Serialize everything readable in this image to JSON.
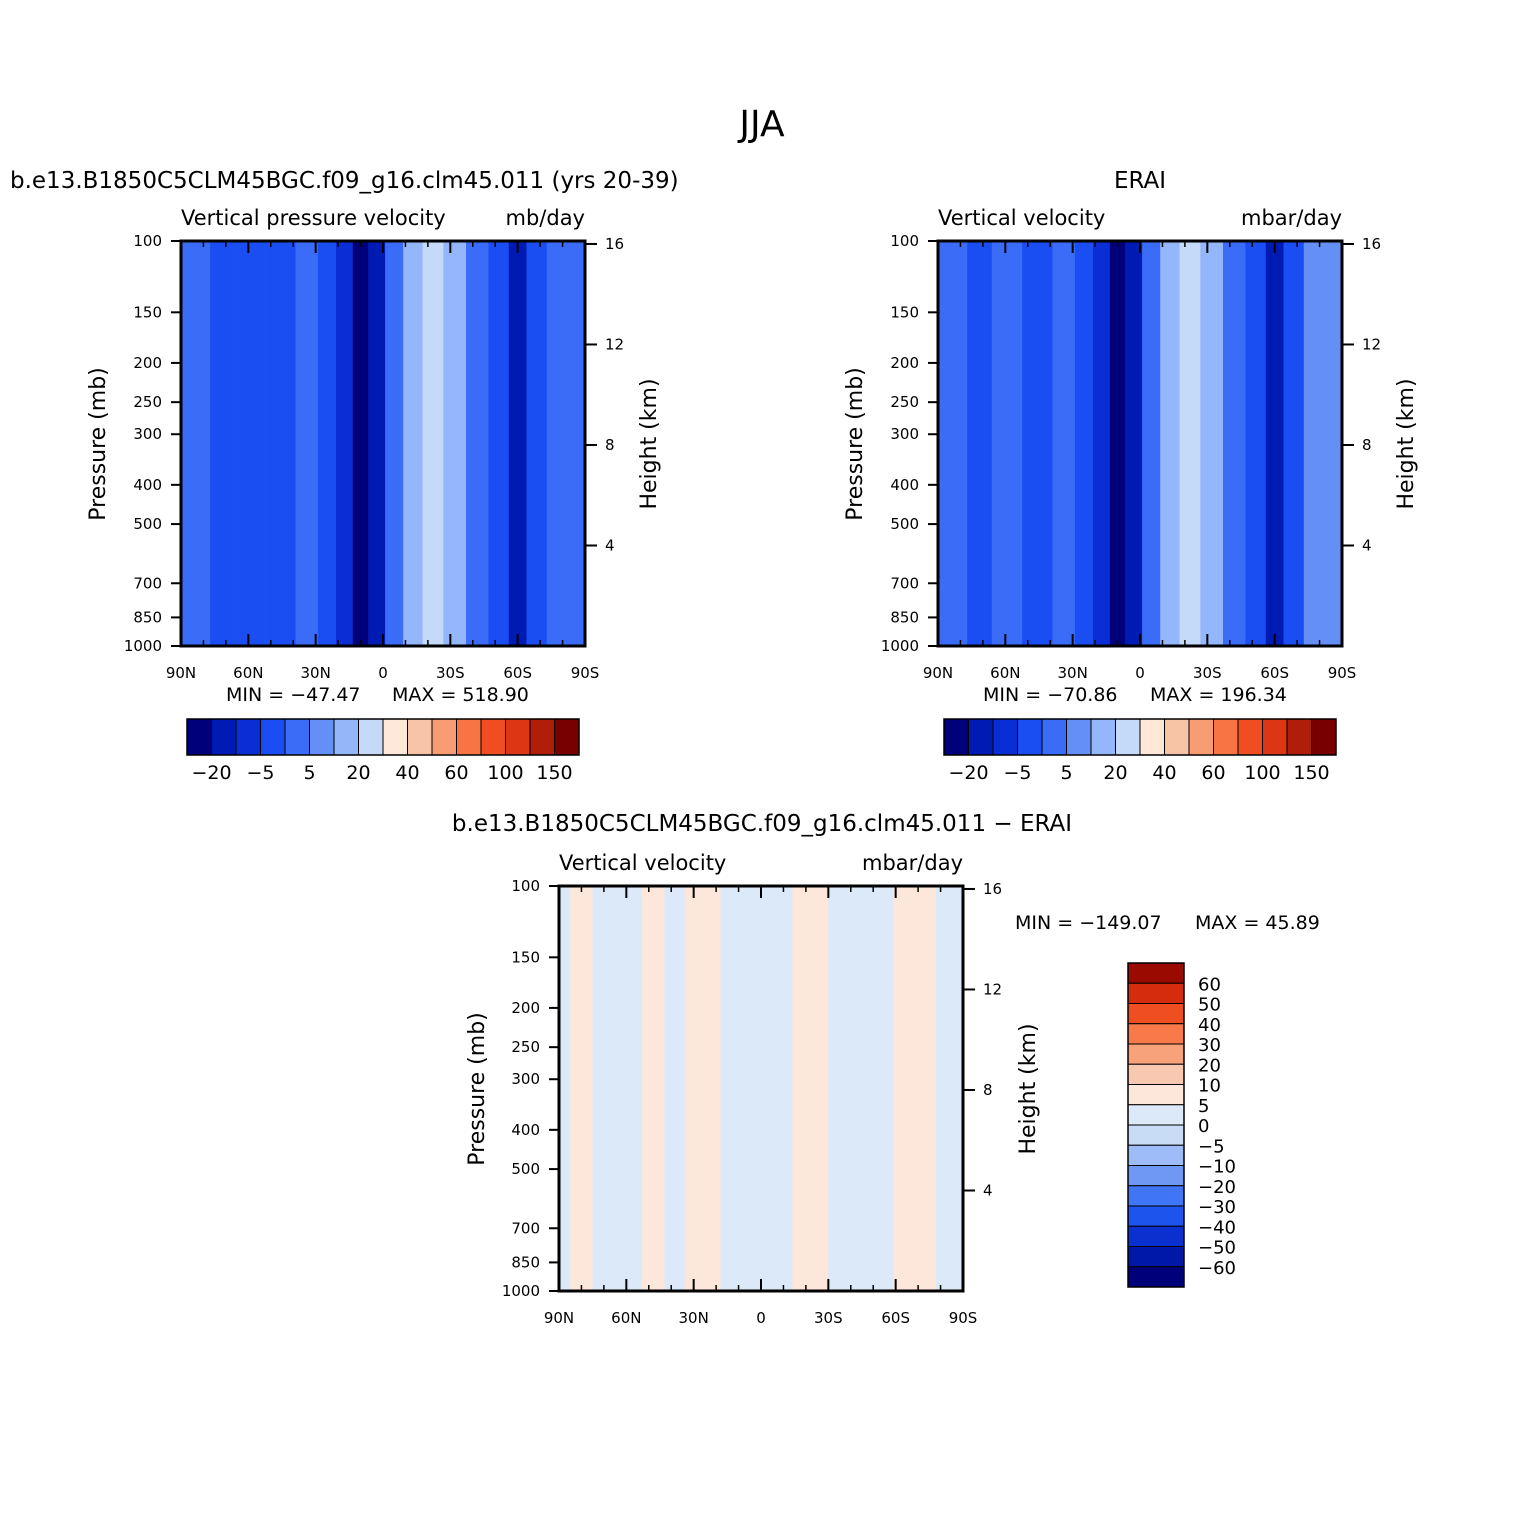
{
  "figure": {
    "title": "JJA"
  },
  "colors": {
    "left_palette": [
      "#00007a",
      "#001ab4",
      "#0a2ed6",
      "#1a4ef2",
      "#3a6cf8",
      "#6490f6",
      "#94b6fa",
      "#c4daf8",
      "#ffe8d8",
      "#f8c4a8",
      "#f89c74",
      "#f87444",
      "#f04e22",
      "#dc3614",
      "#b01e0a",
      "#780000"
    ],
    "diff_palette": [
      "#00007a",
      "#0018a8",
      "#0a30d0",
      "#1e54ee",
      "#4076f6",
      "#6e98f4",
      "#9ebcf8",
      "#c8dcf6",
      "#dbe9f8",
      "#fde7da",
      "#f8c8b0",
      "#f8a27c",
      "#f87a4a",
      "#ee4e20",
      "#d42c0c",
      "#9a0a00"
    ]
  },
  "chart_data": [
    {
      "id": "model",
      "type": "heatmap",
      "title": "b.e13.B1850C5CLM45BGC.f09_g16.clm45.011 (yrs 20-39)",
      "subtitle_left": "Vertical pressure velocity",
      "subtitle_right": "mb/day",
      "ylabel": "Pressure (mb)",
      "ylabel_right": "Height (km)",
      "x_ticks": [
        "90N",
        "60N",
        "30N",
        "0",
        "30S",
        "60S",
        "90S"
      ],
      "xlim": [
        90,
        -90
      ],
      "y_ticks": [
        100,
        150,
        200,
        250,
        300,
        400,
        500,
        700,
        850,
        1000
      ],
      "ylim": [
        100,
        1000
      ],
      "y_scale": "log",
      "height_ticks": [
        16,
        12,
        8,
        4
      ],
      "min_label": "MIN = −47.47",
      "max_label": "MAX = 518.90",
      "min": -47.47,
      "max": 518.9,
      "colorbar_labels": [
        "−20",
        "−5",
        "5",
        "20",
        "40",
        "60",
        "100",
        "150"
      ],
      "field": {
        "columns": [
          {
            "lat": 90,
            "level": 4
          },
          {
            "lat": 82,
            "level": 4
          },
          {
            "lat": 72,
            "level": 3
          },
          {
            "lat": 60,
            "level": 3
          },
          {
            "lat": 45,
            "level": 3
          },
          {
            "lat": 33,
            "level": 4
          },
          {
            "lat": 25,
            "level": 3
          },
          {
            "lat": 17,
            "level": 2
          },
          {
            "lat": 10,
            "level": 0
          },
          {
            "lat": 3,
            "level": 1
          },
          {
            "lat": -5,
            "level": 4
          },
          {
            "lat": -13,
            "level": 6
          },
          {
            "lat": -22,
            "level": 7
          },
          {
            "lat": -32,
            "level": 6
          },
          {
            "lat": -42,
            "level": 4
          },
          {
            "lat": -52,
            "level": 3
          },
          {
            "lat": -60,
            "level": 1
          },
          {
            "lat": -68,
            "level": 3
          },
          {
            "lat": -78,
            "level": 4
          },
          {
            "lat": -90,
            "level": 4
          }
        ]
      }
    },
    {
      "id": "obs",
      "type": "heatmap",
      "title": "ERAI",
      "subtitle_left": "Vertical velocity",
      "subtitle_right": "mbar/day",
      "ylabel": "Pressure (mb)",
      "ylabel_right": "Height (km)",
      "x_ticks": [
        "90N",
        "60N",
        "30N",
        "0",
        "30S",
        "60S",
        "90S"
      ],
      "xlim": [
        90,
        -90
      ],
      "y_ticks": [
        100,
        150,
        200,
        250,
        300,
        400,
        500,
        700,
        850,
        1000
      ],
      "ylim": [
        100,
        1000
      ],
      "y_scale": "log",
      "height_ticks": [
        16,
        12,
        8,
        4
      ],
      "min_label": "MIN = −70.86",
      "max_label": "MAX = 196.34",
      "min": -70.86,
      "max": 196.34,
      "colorbar_labels": [
        "−20",
        "−5",
        "5",
        "20",
        "40",
        "60",
        "100",
        "150"
      ],
      "field": {
        "columns": [
          {
            "lat": 90,
            "level": 4
          },
          {
            "lat": 82,
            "level": 4
          },
          {
            "lat": 72,
            "level": 3
          },
          {
            "lat": 60,
            "level": 4
          },
          {
            "lat": 45,
            "level": 3
          },
          {
            "lat": 33,
            "level": 4
          },
          {
            "lat": 25,
            "level": 3
          },
          {
            "lat": 17,
            "level": 2
          },
          {
            "lat": 10,
            "level": 0
          },
          {
            "lat": 3,
            "level": 1
          },
          {
            "lat": -5,
            "level": 4
          },
          {
            "lat": -13,
            "level": 6
          },
          {
            "lat": -22,
            "level": 7
          },
          {
            "lat": -32,
            "level": 6
          },
          {
            "lat": -42,
            "level": 4
          },
          {
            "lat": -52,
            "level": 3
          },
          {
            "lat": -60,
            "level": 1
          },
          {
            "lat": -68,
            "level": 3
          },
          {
            "lat": -78,
            "level": 5
          },
          {
            "lat": -90,
            "level": 5
          }
        ]
      }
    },
    {
      "id": "diff",
      "type": "heatmap",
      "title": "b.e13.B1850C5CLM45BGC.f09_g16.clm45.011 − ERAI",
      "subtitle_left": "Vertical velocity",
      "subtitle_right": "mbar/day",
      "ylabel": "Pressure (mb)",
      "ylabel_right": "Height (km)",
      "x_ticks": [
        "90N",
        "60N",
        "30N",
        "0",
        "30S",
        "60S",
        "90S"
      ],
      "xlim": [
        90,
        -90
      ],
      "y_ticks": [
        100,
        150,
        200,
        250,
        300,
        400,
        500,
        700,
        850,
        1000
      ],
      "ylim": [
        100,
        1000
      ],
      "y_scale": "log",
      "height_ticks": [
        16,
        12,
        8,
        4
      ],
      "min_label": "MIN = −149.07",
      "max_label": "MAX =   45.89",
      "min": -149.07,
      "max": 45.89,
      "colorbar_labels": [
        "60",
        "50",
        "40",
        "30",
        "20",
        "10",
        "5",
        "0",
        "−5",
        "−10",
        "−20",
        "−30",
        "−40",
        "−50",
        "−60"
      ],
      "field": {
        "columns": [
          {
            "lat": 90,
            "level": 8
          },
          {
            "lat": 80,
            "level": 9
          },
          {
            "lat": 70,
            "level": 8
          },
          {
            "lat": 58,
            "level": 8
          },
          {
            "lat": 48,
            "level": 9
          },
          {
            "lat": 38,
            "level": 8
          },
          {
            "lat": 30,
            "level": 9
          },
          {
            "lat": 22,
            "level": 9
          },
          {
            "lat": 14,
            "level": 8
          },
          {
            "lat": 6,
            "level": 8
          },
          {
            "lat": -2,
            "level": 8
          },
          {
            "lat": -10,
            "level": 8
          },
          {
            "lat": -18,
            "level": 9
          },
          {
            "lat": -26,
            "level": 9
          },
          {
            "lat": -34,
            "level": 8
          },
          {
            "lat": -44,
            "level": 8
          },
          {
            "lat": -54,
            "level": 8
          },
          {
            "lat": -64,
            "level": 9
          },
          {
            "lat": -74,
            "level": 9
          },
          {
            "lat": -82,
            "level": 8
          },
          {
            "lat": -90,
            "level": 8
          }
        ]
      }
    }
  ]
}
